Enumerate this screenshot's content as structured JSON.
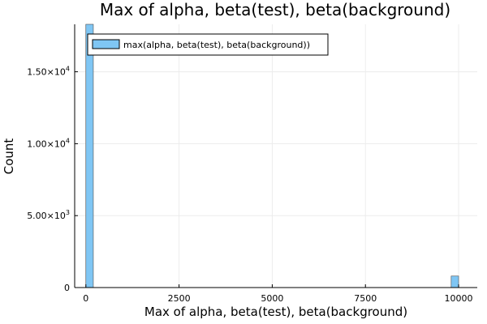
{
  "chart_data": {
    "type": "bar",
    "title": "Max of alpha, beta(test), beta(background)",
    "xlabel": "Max of alpha, beta(test), beta(background)",
    "ylabel": "Count",
    "xlim": [
      -300,
      10500
    ],
    "ylim": [
      0,
      18300
    ],
    "xticks": [
      0,
      2500,
      5000,
      7500,
      10000
    ],
    "xtick_labels": [
      "0",
      "2500",
      "5000",
      "7500",
      "10000"
    ],
    "yticks": [
      0,
      5000,
      10000,
      15000
    ],
    "ytick_labels": [
      {
        "mant": "0",
        "exp": ""
      },
      {
        "mant": "5.00×10",
        "exp": "3"
      },
      {
        "mant": "1.00×10",
        "exp": "4"
      },
      {
        "mant": "1.50×10",
        "exp": "4"
      }
    ],
    "grid": true,
    "legend": "top-left",
    "series": [
      {
        "name": "max(alpha, beta(test), beta(background))",
        "color": "#7fc6f4",
        "bins": [
          {
            "start": 0,
            "end": 200,
            "count": 18300
          },
          {
            "start": 9800,
            "end": 10000,
            "count": 800
          }
        ]
      }
    ]
  }
}
